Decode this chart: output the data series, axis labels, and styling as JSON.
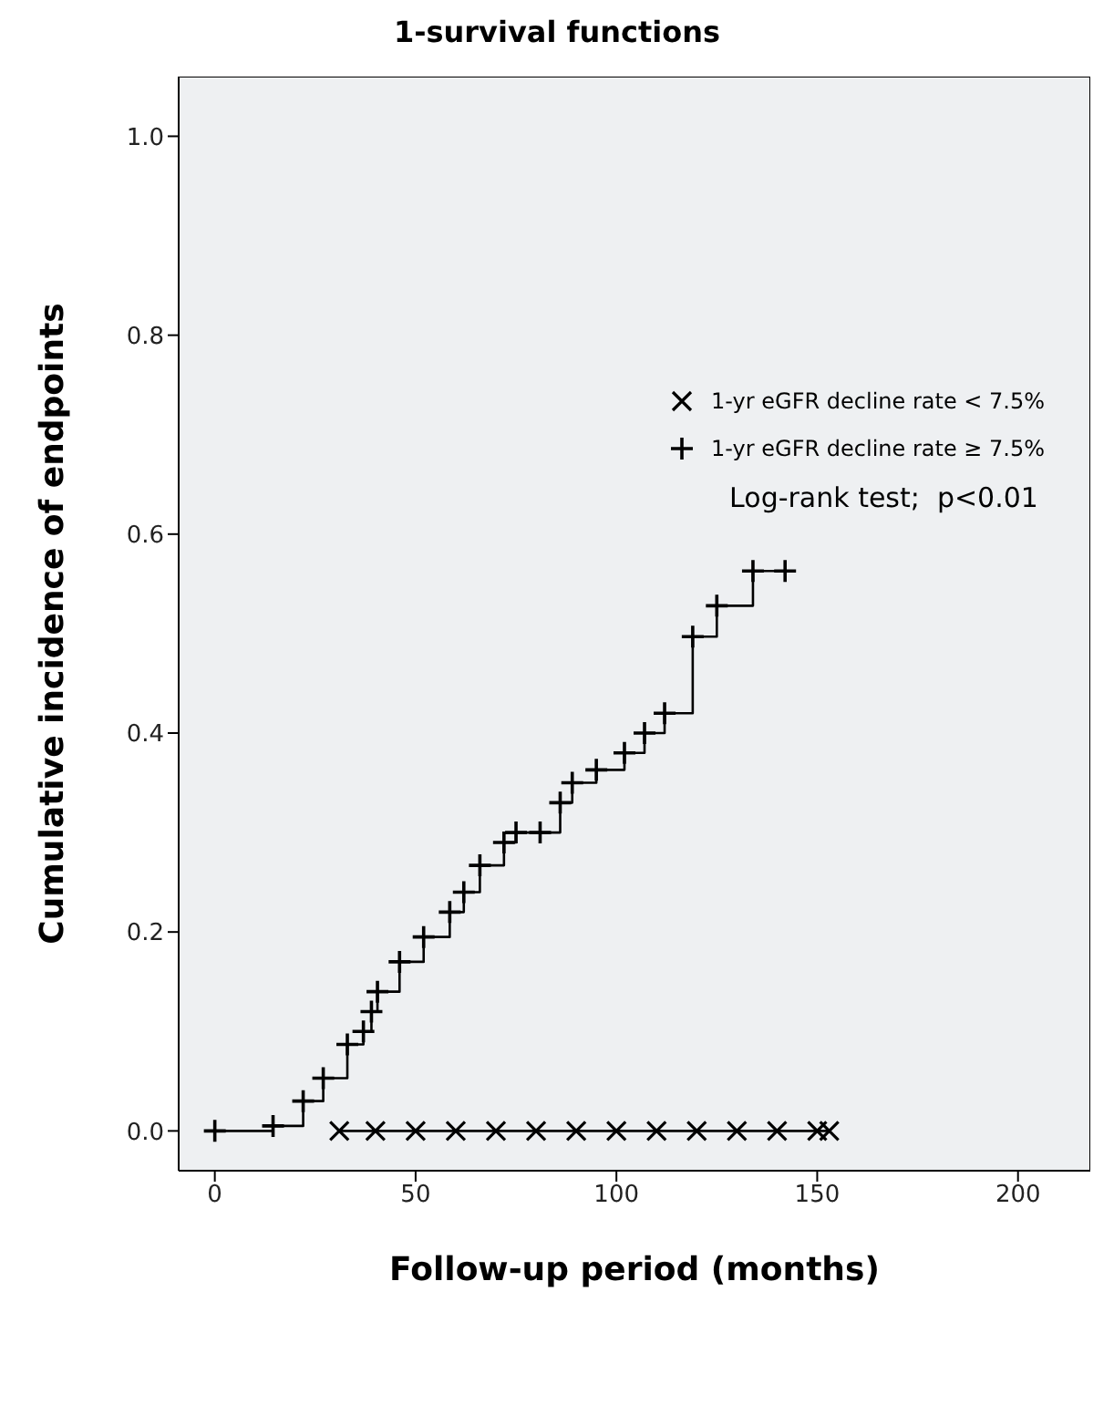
{
  "chart_data": {
    "type": "step",
    "title": "1-survival functions",
    "xlabel": "Follow-up period (months)",
    "ylabel": "Cumulative incidence of endpoints",
    "xlim": [
      -9,
      218
    ],
    "ylim": [
      -0.04,
      1.06
    ],
    "xticks": [
      0,
      50,
      100,
      150,
      200
    ],
    "yticks": [
      {
        "value": 0,
        "label": "0.0"
      },
      {
        "value": 0.2,
        "label": "0.2"
      },
      {
        "value": 0.4,
        "label": "0.4"
      },
      {
        "value": 0.6,
        "label": "0.6"
      },
      {
        "value": 0.8,
        "label": "0.8"
      },
      {
        "value": 1,
        "label": "1.0"
      }
    ],
    "legend": "top right",
    "line_style": "solid",
    "annotations": [
      "Log-rank test;  p<0.01"
    ],
    "series": [
      {
        "name": "1-yr eGFR decline rate < 7.5%",
        "color": "#000000",
        "marker": "x",
        "x": [
          31,
          40,
          50,
          60,
          70,
          80,
          90,
          100,
          110,
          120,
          130,
          140,
          150,
          153
        ],
        "values": [
          0,
          0,
          0,
          0,
          0,
          0,
          0,
          0,
          0,
          0,
          0,
          0,
          0,
          0
        ]
      },
      {
        "name": "1-yr eGFR decline rate ≥ 7.5%",
        "color": "#000000",
        "marker": "cross",
        "x": [
          0,
          14.5,
          22,
          27,
          33,
          37,
          39,
          40.5,
          46,
          52,
          58.5,
          62,
          66,
          72,
          75,
          81,
          86,
          89,
          95,
          102,
          107,
          112,
          119,
          125,
          134,
          142
        ],
        "values": [
          0,
          0.005,
          0.03,
          0.053,
          0.087,
          0.1,
          0.12,
          0.14,
          0.17,
          0.195,
          0.22,
          0.24,
          0.267,
          0.29,
          0.3,
          0.3,
          0.33,
          0.35,
          0.363,
          0.38,
          0.4,
          0.42,
          0.497,
          0.528,
          0.563,
          0.563
        ]
      }
    ]
  }
}
